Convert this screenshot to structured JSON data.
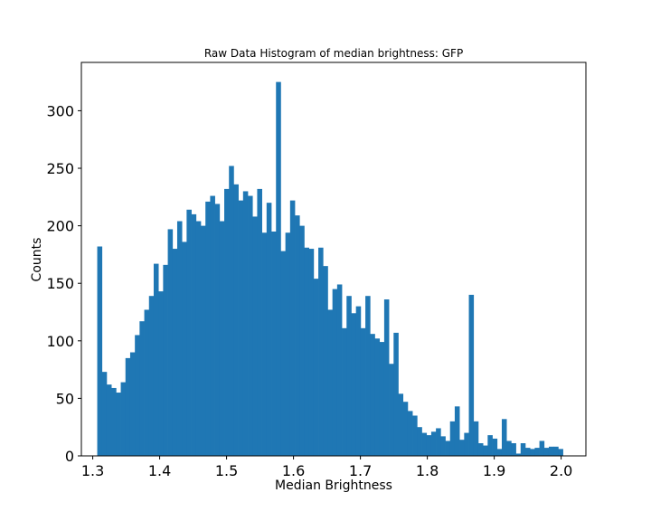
{
  "chart_data": {
    "type": "bar",
    "title": "Raw Data Histogram of median brightness: GFP",
    "xlabel": "Median Brightness",
    "ylabel": "Counts",
    "xlim": [
      1.283,
      2.037
    ],
    "ylim": [
      0,
      342
    ],
    "xticks": [
      "1.3",
      "1.4",
      "1.5",
      "1.6",
      "1.7",
      "1.8",
      "1.9",
      "2.0"
    ],
    "yticks": [
      "0",
      "50",
      "100",
      "150",
      "200",
      "250",
      "300"
    ],
    "bar_color": "#1f77b4",
    "grid": false,
    "legend": "none",
    "bin_start": 1.3067,
    "bin_width": 0.00703,
    "values": [
      182,
      73,
      62,
      59,
      55,
      64,
      85,
      90,
      105,
      117,
      127,
      139,
      167,
      143,
      166,
      197,
      180,
      204,
      186,
      214,
      210,
      204,
      200,
      221,
      226,
      219,
      204,
      232,
      252,
      236,
      222,
      230,
      226,
      208,
      232,
      194,
      220,
      195,
      325,
      178,
      194,
      222,
      209,
      200,
      181,
      180,
      154,
      181,
      165,
      127,
      145,
      149,
      111,
      139,
      124,
      130,
      111,
      139,
      106,
      102,
      99,
      136,
      80,
      107,
      54,
      47,
      39,
      35,
      25,
      20,
      18,
      21,
      24,
      17,
      13,
      30,
      43,
      14,
      20,
      140,
      30,
      11,
      9,
      18,
      15,
      6,
      32,
      13,
      11,
      2,
      11,
      7,
      6,
      7,
      13,
      7,
      8,
      8,
      6
    ]
  }
}
